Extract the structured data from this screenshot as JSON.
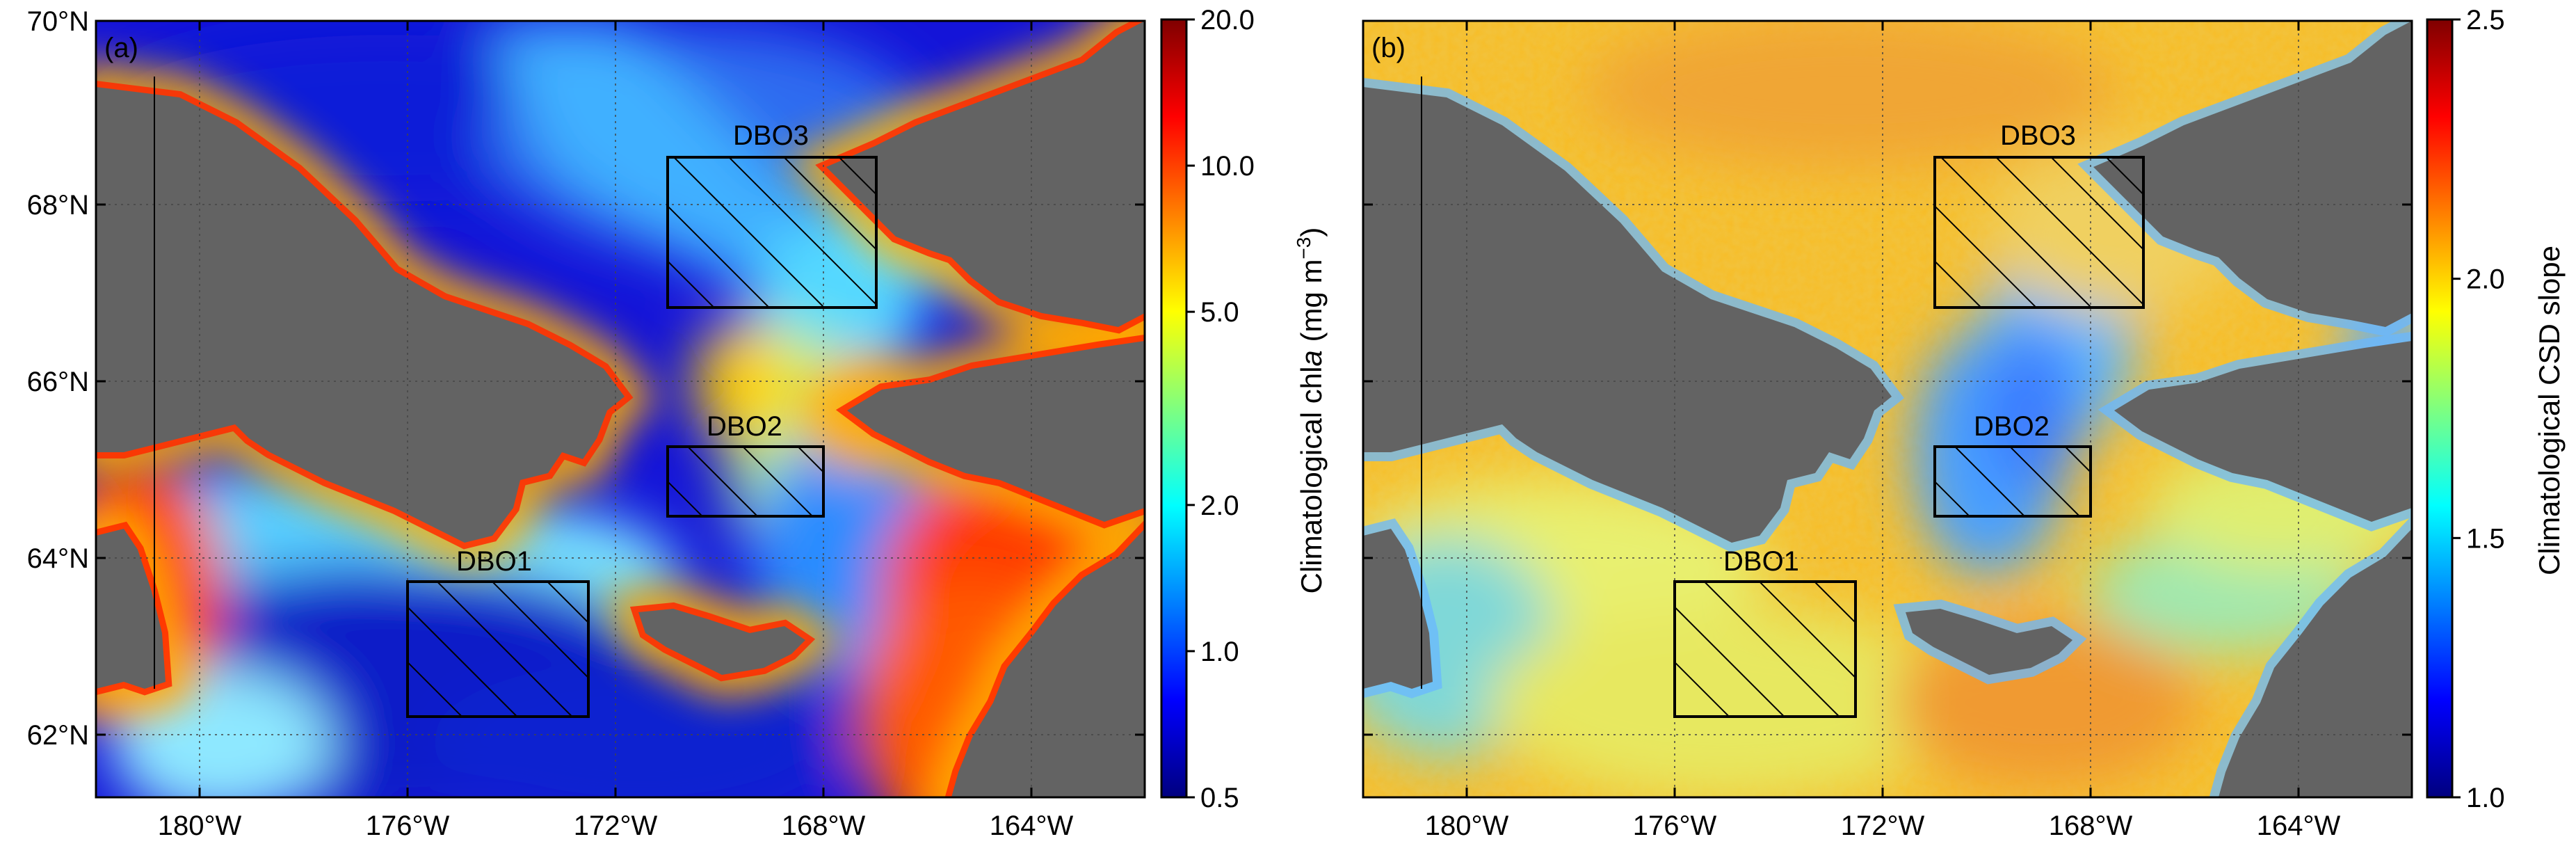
{
  "panels": [
    {
      "tag": "(a)",
      "colorbar_title": "Climatological chl",
      "colorbar_title_italic": "a",
      "colorbar_units": " (mg m",
      "colorbar_units_sup": "−3",
      "colorbar_units_close": ")",
      "colorbar_ticks": [
        "0.5",
        "1.0",
        "2.0",
        "5.0",
        "10.0",
        "20.0"
      ],
      "colorbar_scale": "log"
    },
    {
      "tag": "(b)",
      "colorbar_title": "Climatological CSD slope",
      "colorbar_ticks": [
        "1.0",
        "1.5",
        "2.0",
        "2.5"
      ],
      "colorbar_scale": "linear"
    }
  ],
  "lat_labels": [
    "70°N",
    "68°N",
    "66°N",
    "64°N",
    "62°N"
  ],
  "lon_labels": [
    "180°W",
    "176°W",
    "172°W",
    "168°W",
    "164°W"
  ],
  "boxes": [
    "DBO1",
    "DBO2",
    "DBO3"
  ],
  "colors": {
    "land": "#636363",
    "jet": [
      "#00007f",
      "#0000ff",
      "#007fff",
      "#00ffff",
      "#7fff7f",
      "#ffff00",
      "#ff7f00",
      "#ff0000",
      "#7f0000"
    ]
  }
}
